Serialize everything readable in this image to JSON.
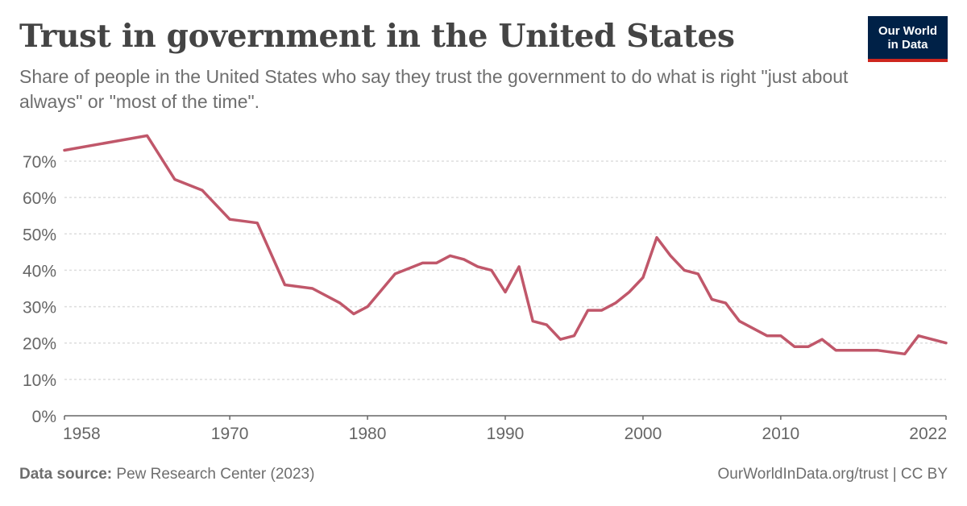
{
  "header": {
    "title": "Trust in government in the United States",
    "subtitle": "Share of people in the United States who say they trust the government to do what is right \"just about always\" or \"most of the time\"."
  },
  "logo": {
    "line1": "Our World",
    "line2": "in Data"
  },
  "footer": {
    "source_label": "Data source:",
    "source_text": "Pew Research Center (2023)",
    "url_license": "OurWorldInData.org/trust | CC BY"
  },
  "colors": {
    "line": "#c0576a",
    "grid": "#dddddd",
    "axis": "#666666",
    "text": "#666666"
  },
  "chart_data": {
    "type": "line",
    "x_ticks": [
      "1958",
      "1970",
      "1980",
      "1990",
      "2000",
      "2010",
      "2022"
    ],
    "y_ticks": [
      "0%",
      "10%",
      "20%",
      "30%",
      "40%",
      "50%",
      "60%",
      "70%"
    ],
    "xlim": [
      1958,
      2022
    ],
    "ylim": [
      0,
      70
    ],
    "grid": true,
    "series": [
      {
        "values": [
          [
            1958,
            73
          ],
          [
            1964,
            77
          ],
          [
            1966,
            65
          ],
          [
            1968,
            62
          ],
          [
            1970,
            54
          ],
          [
            1972,
            53
          ],
          [
            1974,
            36
          ],
          [
            1976,
            35
          ],
          [
            1978,
            31
          ],
          [
            1979,
            28
          ],
          [
            1980,
            30
          ],
          [
            1982,
            39
          ],
          [
            1984,
            42
          ],
          [
            1985,
            42
          ],
          [
            1986,
            44
          ],
          [
            1987,
            43
          ],
          [
            1988,
            41
          ],
          [
            1989,
            40
          ],
          [
            1990,
            34
          ],
          [
            1991,
            41
          ],
          [
            1992,
            26
          ],
          [
            1993,
            25
          ],
          [
            1994,
            21
          ],
          [
            1995,
            22
          ],
          [
            1996,
            29
          ],
          [
            1997,
            29
          ],
          [
            1998,
            31
          ],
          [
            1999,
            34
          ],
          [
            2000,
            38
          ],
          [
            2001,
            49
          ],
          [
            2002,
            44
          ],
          [
            2003,
            40
          ],
          [
            2004,
            39
          ],
          [
            2005,
            32
          ],
          [
            2006,
            31
          ],
          [
            2007,
            26
          ],
          [
            2009,
            22
          ],
          [
            2010,
            22
          ],
          [
            2011,
            19
          ],
          [
            2012,
            19
          ],
          [
            2013,
            21
          ],
          [
            2014,
            18
          ],
          [
            2017,
            18
          ],
          [
            2019,
            17
          ],
          [
            2020,
            22
          ],
          [
            2022,
            20
          ]
        ]
      }
    ]
  }
}
